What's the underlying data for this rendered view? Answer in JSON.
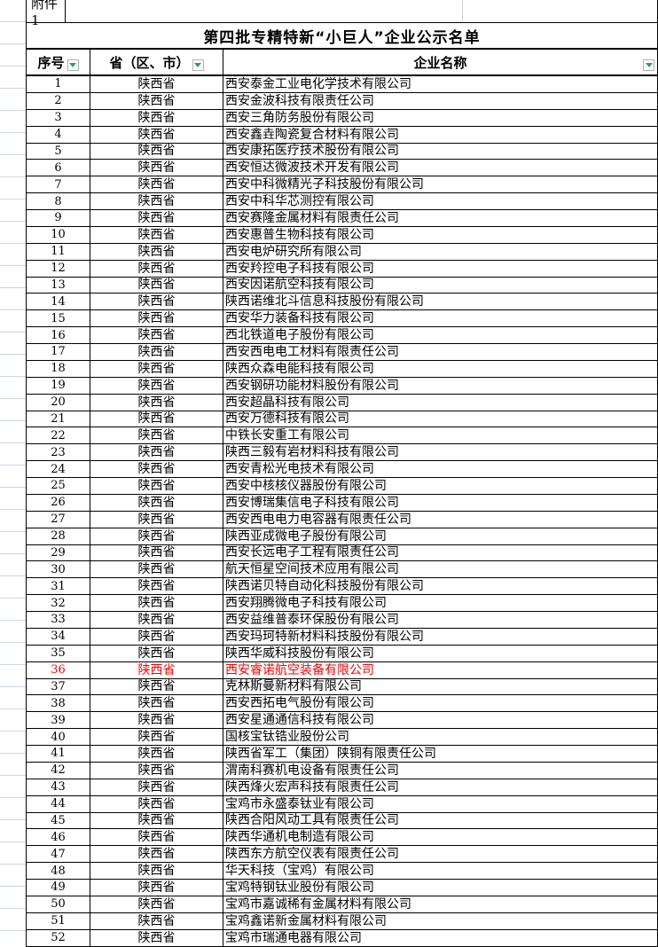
{
  "attachment_label": "附件1",
  "title": "第四批专精特新“小巨人”企业公示名单",
  "columns": {
    "no": "序号",
    "province": "省（区、市）",
    "company": "企业名称"
  },
  "icons": {
    "header_filter": "filter-dropdown-icon"
  },
  "colors": {
    "highlight_text": "#ff0000",
    "filter_arrow": "#21a366",
    "margin_gridline": "#ccd6e4",
    "table_border": "#000000"
  },
  "rows": [
    {
      "no": 1,
      "province": "陕西省",
      "company": "西安泰金工业电化学技术有限公司"
    },
    {
      "no": 2,
      "province": "陕西省",
      "company": "西安金波科技有限责任公司"
    },
    {
      "no": 3,
      "province": "陕西省",
      "company": "西安三角防务股份有限公司"
    },
    {
      "no": 4,
      "province": "陕西省",
      "company": "西安鑫垚陶瓷复合材料有限公司"
    },
    {
      "no": 5,
      "province": "陕西省",
      "company": "西安康拓医疗技术股份有限公司"
    },
    {
      "no": 6,
      "province": "陕西省",
      "company": "西安恒达微波技术开发有限公司"
    },
    {
      "no": 7,
      "province": "陕西省",
      "company": "西安中科微精光子科技股份有限公司"
    },
    {
      "no": 8,
      "province": "陕西省",
      "company": "西安中科华芯测控有限公司"
    },
    {
      "no": 9,
      "province": "陕西省",
      "company": "西安赛隆金属材料有限责任公司"
    },
    {
      "no": 10,
      "province": "陕西省",
      "company": "西安惠普生物科技有限公司"
    },
    {
      "no": 11,
      "province": "陕西省",
      "company": "西安电炉研究所有限公司"
    },
    {
      "no": 12,
      "province": "陕西省",
      "company": "西安羚控电子科技有限公司"
    },
    {
      "no": 13,
      "province": "陕西省",
      "company": "西安因诺航空科技有限公司"
    },
    {
      "no": 14,
      "province": "陕西省",
      "company": "陕西诺维北斗信息科技股份有限公司"
    },
    {
      "no": 15,
      "province": "陕西省",
      "company": "西安华力装备科技有限公司"
    },
    {
      "no": 16,
      "province": "陕西省",
      "company": "西北铁道电子股份有限公司"
    },
    {
      "no": 17,
      "province": "陕西省",
      "company": "西安西电电工材料有限责任公司"
    },
    {
      "no": 18,
      "province": "陕西省",
      "company": "陕西众森电能科技有限公司"
    },
    {
      "no": 19,
      "province": "陕西省",
      "company": "西安钢研功能材料股份有限公司"
    },
    {
      "no": 20,
      "province": "陕西省",
      "company": "西安超晶科技有限公司"
    },
    {
      "no": 21,
      "province": "陕西省",
      "company": "西安万德科技有限公司"
    },
    {
      "no": 22,
      "province": "陕西省",
      "company": "中铁长安重工有限公司"
    },
    {
      "no": 23,
      "province": "陕西省",
      "company": "陕西三毅有岩材料科技有限公司"
    },
    {
      "no": 24,
      "province": "陕西省",
      "company": "西安青松光电技术有限公司"
    },
    {
      "no": 25,
      "province": "陕西省",
      "company": "西安中核核仪器股份有限公司"
    },
    {
      "no": 26,
      "province": "陕西省",
      "company": "西安博瑞集信电子科技有限公司"
    },
    {
      "no": 27,
      "province": "陕西省",
      "company": "西安西电电力电容器有限责任公司"
    },
    {
      "no": 28,
      "province": "陕西省",
      "company": "陕西亚成微电子股份有限公司"
    },
    {
      "no": 29,
      "province": "陕西省",
      "company": "西安长远电子工程有限责任公司"
    },
    {
      "no": 30,
      "province": "陕西省",
      "company": "航天恒星空间技术应用有限公司"
    },
    {
      "no": 31,
      "province": "陕西省",
      "company": "陕西诺贝特自动化科技股份有限公司"
    },
    {
      "no": 32,
      "province": "陕西省",
      "company": "西安翔腾微电子科技有限公司"
    },
    {
      "no": 33,
      "province": "陕西省",
      "company": "西安益维普泰环保股份有限公司"
    },
    {
      "no": 34,
      "province": "陕西省",
      "company": "西安玛珂特新材料科技股份有限公司"
    },
    {
      "no": 35,
      "province": "陕西省",
      "company": "陕西华威科技股份有限公司"
    },
    {
      "no": 36,
      "province": "陕西省",
      "company": "西安睿诺航空装备有限公司",
      "highlighted": true
    },
    {
      "no": 37,
      "province": "陕西省",
      "company": "克林斯曼新材料有限公司"
    },
    {
      "no": 38,
      "province": "陕西省",
      "company": "西安西拓电气股份有限公司"
    },
    {
      "no": 39,
      "province": "陕西省",
      "company": "西安星通通信科技有限公司"
    },
    {
      "no": 40,
      "province": "陕西省",
      "company": "国核宝钛锆业股份公司"
    },
    {
      "no": 41,
      "province": "陕西省",
      "company": "陕西省军工（集团）陕铜有限责任公司"
    },
    {
      "no": 42,
      "province": "陕西省",
      "company": "渭南科赛机电设备有限责任公司"
    },
    {
      "no": 43,
      "province": "陕西省",
      "company": "陕西烽火宏声科技有限责任公司"
    },
    {
      "no": 44,
      "province": "陕西省",
      "company": "宝鸡市永盛泰钛业有限公司"
    },
    {
      "no": 45,
      "province": "陕西省",
      "company": "陕西合阳风动工具有限责任公司"
    },
    {
      "no": 46,
      "province": "陕西省",
      "company": "陕西华通机电制造有限公司"
    },
    {
      "no": 47,
      "province": "陕西省",
      "company": "陕西东方航空仪表有限责任公司"
    },
    {
      "no": 48,
      "province": "陕西省",
      "company": "华天科技（宝鸡）有限公司"
    },
    {
      "no": 49,
      "province": "陕西省",
      "company": "宝鸡特钢钛业股份有限公司"
    },
    {
      "no": 50,
      "province": "陕西省",
      "company": "宝鸡市嘉诚稀有金属材料有限公司"
    },
    {
      "no": 51,
      "province": "陕西省",
      "company": "宝鸡鑫诺新金属材料有限公司"
    },
    {
      "no": 52,
      "province": "陕西省",
      "company": "宝鸡市瑞通电器有限公司"
    }
  ]
}
